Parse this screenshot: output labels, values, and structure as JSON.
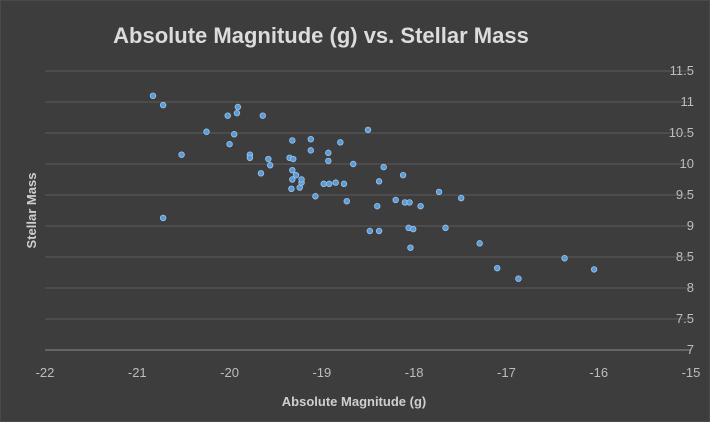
{
  "chart_data": {
    "type": "scatter",
    "title": "Absolute Magnitude (g) vs. Stellar Mass",
    "xlabel": "Absolute Magnitude (g)",
    "ylabel": "Stellar Mass",
    "xlim": [
      -22,
      -15
    ],
    "ylim": [
      7,
      11.5
    ],
    "x_ticks": [
      -22,
      -21,
      -20,
      -19,
      -18,
      -17,
      -16,
      -15
    ],
    "y_ticks": [
      7,
      7.5,
      8,
      8.5,
      9,
      9.5,
      10,
      10.5,
      11,
      11.5
    ],
    "y_axis_side": "right",
    "grid": "horizontal",
    "legend": "none",
    "colors": {
      "background": "#3d3d3d",
      "marker": "#5b9bd5",
      "text": "#cfcfcf",
      "grid": "#5c5c5c"
    },
    "series": [
      {
        "points": [
          [
            -20.83,
            11.1
          ],
          [
            -20.72,
            10.95
          ],
          [
            -20.72,
            9.13
          ],
          [
            -20.52,
            10.15
          ],
          [
            -20.25,
            10.52
          ],
          [
            -20.02,
            10.78
          ],
          [
            -20.0,
            10.32
          ],
          [
            -19.95,
            10.48
          ],
          [
            -19.92,
            10.82
          ],
          [
            -19.91,
            10.92
          ],
          [
            -19.78,
            10.15
          ],
          [
            -19.78,
            10.1
          ],
          [
            -19.64,
            10.78
          ],
          [
            -19.66,
            9.85
          ],
          [
            -19.58,
            10.08
          ],
          [
            -19.56,
            9.98
          ],
          [
            -19.35,
            10.1
          ],
          [
            -19.32,
            10.38
          ],
          [
            -19.31,
            10.08
          ],
          [
            -19.32,
            9.9
          ],
          [
            -19.32,
            9.75
          ],
          [
            -19.33,
            9.6
          ],
          [
            -19.28,
            9.82
          ],
          [
            -19.24,
            9.62
          ],
          [
            -19.22,
            9.7
          ],
          [
            -19.22,
            9.75
          ],
          [
            -19.12,
            10.4
          ],
          [
            -19.12,
            10.22
          ],
          [
            -19.07,
            9.48
          ],
          [
            -18.98,
            9.68
          ],
          [
            -18.93,
            10.18
          ],
          [
            -18.93,
            10.05
          ],
          [
            -18.92,
            9.68
          ],
          [
            -18.85,
            9.7
          ],
          [
            -18.8,
            10.35
          ],
          [
            -18.76,
            9.68
          ],
          [
            -18.73,
            9.4
          ],
          [
            -18.66,
            10.0
          ],
          [
            -18.5,
            10.55
          ],
          [
            -18.48,
            8.92
          ],
          [
            -18.4,
            9.32
          ],
          [
            -18.38,
            9.72
          ],
          [
            -18.38,
            8.92
          ],
          [
            -18.33,
            9.95
          ],
          [
            -18.2,
            9.42
          ],
          [
            -18.12,
            9.82
          ],
          [
            -18.1,
            9.38
          ],
          [
            -18.06,
            8.97
          ],
          [
            -18.05,
            9.38
          ],
          [
            -18.04,
            8.65
          ],
          [
            -18.01,
            8.95
          ],
          [
            -17.93,
            9.32
          ],
          [
            -17.73,
            9.55
          ],
          [
            -17.66,
            8.97
          ],
          [
            -17.49,
            9.45
          ],
          [
            -17.29,
            8.72
          ],
          [
            -17.1,
            8.32
          ],
          [
            -16.87,
            8.15
          ],
          [
            -16.37,
            8.48
          ],
          [
            -16.05,
            8.3
          ]
        ]
      }
    ]
  }
}
